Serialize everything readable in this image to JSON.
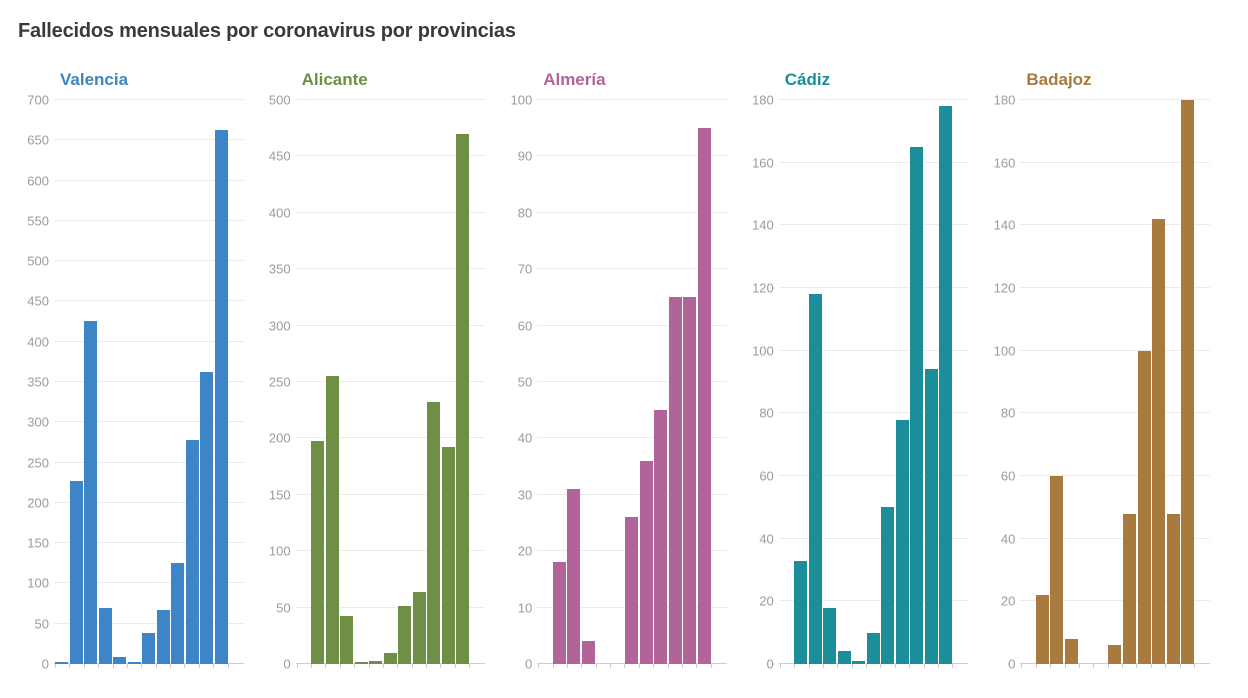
{
  "page_title": "Fallecidos mensuales por coronavirus por provincias",
  "colors": {
    "background": "#ffffff",
    "main_title_text": "#3a3a3a",
    "tick_label": "#9b9b9b",
    "gridline": "#ebebeb",
    "baseline": "#cfcfcf"
  },
  "chart_data": [
    {
      "type": "bar",
      "title": "Valencia",
      "color": "#3d85c6",
      "ylim": [
        0,
        700
      ],
      "ytick_step": 50,
      "yticks": [
        0,
        50,
        100,
        150,
        200,
        250,
        300,
        350,
        400,
        450,
        500,
        550,
        600,
        650,
        700
      ],
      "x": [
        1,
        2,
        3,
        4,
        5,
        6,
        7,
        8,
        9,
        10,
        11,
        12
      ],
      "x_labels_visible": false,
      "grid": true,
      "values": [
        2,
        227,
        426,
        69,
        9,
        2,
        38,
        67,
        125,
        278,
        362,
        663
      ]
    },
    {
      "type": "bar",
      "title": "Alicante",
      "color": "#6f8f44",
      "ylim": [
        0,
        500
      ],
      "ytick_step": 50,
      "yticks": [
        0,
        50,
        100,
        150,
        200,
        250,
        300,
        350,
        400,
        450,
        500
      ],
      "x": [
        1,
        2,
        3,
        4,
        5,
        6,
        7,
        8,
        9,
        10,
        11,
        12
      ],
      "x_labels_visible": false,
      "grid": true,
      "values": [
        0,
        198,
        255,
        43,
        2,
        3,
        10,
        51,
        64,
        232,
        192,
        470
      ]
    },
    {
      "type": "bar",
      "title": "Almería",
      "color": "#b0649a",
      "ylim": [
        0,
        100
      ],
      "ytick_step": 10,
      "yticks": [
        0,
        10,
        20,
        30,
        40,
        50,
        60,
        70,
        80,
        90,
        100
      ],
      "x": [
        1,
        2,
        3,
        4,
        5,
        6,
        7,
        8,
        9,
        10,
        11,
        12
      ],
      "x_labels_visible": false,
      "grid": true,
      "values": [
        0,
        18,
        31,
        4,
        0,
        0,
        26,
        36,
        45,
        65,
        65,
        95
      ]
    },
    {
      "type": "bar",
      "title": "Cádiz",
      "color": "#1b8e99",
      "ylim": [
        0,
        180
      ],
      "ytick_step": 20,
      "yticks": [
        0,
        20,
        40,
        60,
        80,
        100,
        120,
        140,
        160,
        180
      ],
      "x": [
        1,
        2,
        3,
        4,
        5,
        6,
        7,
        8,
        9,
        10,
        11,
        12
      ],
      "x_labels_visible": false,
      "grid": true,
      "values": [
        0,
        33,
        118,
        18,
        4,
        1,
        10,
        50,
        78,
        165,
        94,
        178
      ]
    },
    {
      "type": "bar",
      "title": "Badajoz",
      "color": "#a87a3e",
      "ylim": [
        0,
        180
      ],
      "ytick_step": 20,
      "yticks": [
        0,
        20,
        40,
        60,
        80,
        100,
        120,
        140,
        160,
        180
      ],
      "x": [
        1,
        2,
        3,
        4,
        5,
        6,
        7,
        8,
        9,
        10,
        11,
        12
      ],
      "x_labels_visible": false,
      "grid": true,
      "values": [
        0,
        22,
        60,
        8,
        0,
        0,
        6,
        48,
        100,
        142,
        48,
        180
      ]
    }
  ]
}
